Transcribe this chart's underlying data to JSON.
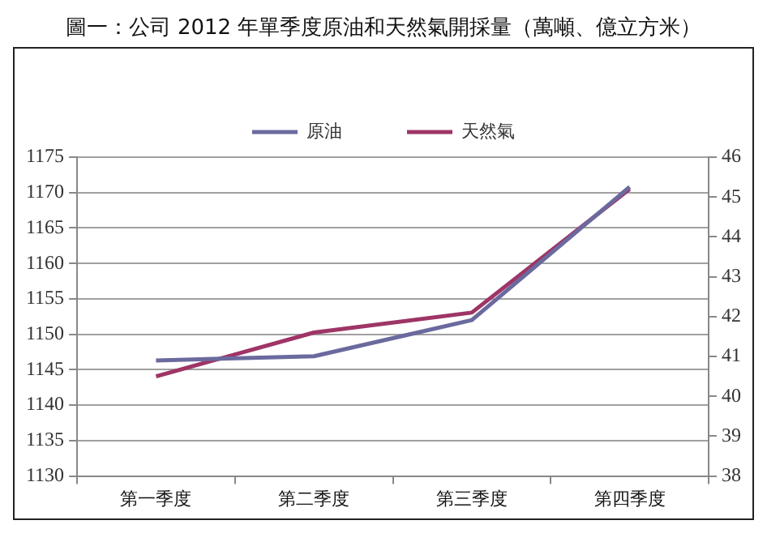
{
  "chart_data": {
    "type": "line",
    "title": "圖一：公司 2012 年單季度原油和天然氣開採量（萬噸、億立方米）",
    "categories": [
      "第一季度",
      "第二季度",
      "第三季度",
      "第四季度"
    ],
    "series": [
      {
        "name": "原油",
        "color": "#6a6a9e",
        "values": [
          1146.3,
          1146.9,
          1152,
          1170.8
        ]
      },
      {
        "name": "天然氣",
        "color": "#9e3566",
        "values": [
          40.5,
          41.6,
          42.1,
          45.2
        ],
        "axis": "y2"
      }
    ],
    "ylim": [
      1130,
      1175
    ],
    "yticks": [
      1130,
      1135,
      1140,
      1145,
      1150,
      1155,
      1160,
      1165,
      1170,
      1175
    ],
    "y2lim": [
      38,
      46
    ],
    "y2ticks": [
      38,
      39,
      40,
      41,
      42,
      43,
      44,
      45,
      46
    ],
    "grid": "y",
    "legend": "top",
    "marker": "none",
    "line_style": "solid"
  }
}
